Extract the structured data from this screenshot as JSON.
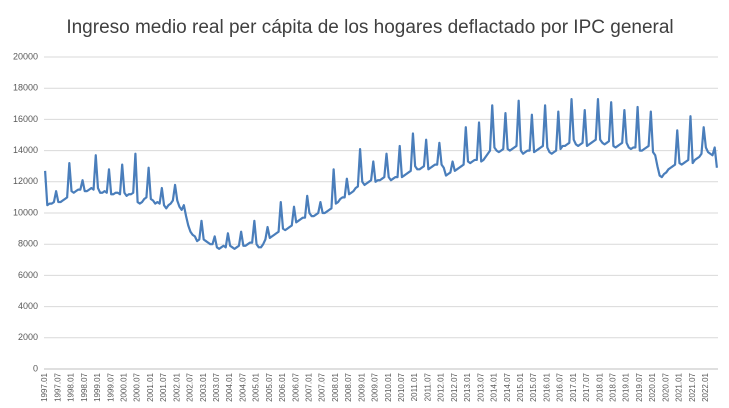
{
  "chart_data": {
    "type": "line",
    "title": "Ingreso medio real per cápita de los hogares deflactado por IPC general",
    "categories": [
      "1997.01",
      null,
      null,
      null,
      null,
      null,
      "1997.07",
      null,
      null,
      null,
      null,
      null,
      "1998.01",
      null,
      null,
      null,
      null,
      null,
      "1998.07",
      null,
      null,
      null,
      null,
      null,
      "1999.01",
      null,
      null,
      null,
      null,
      null,
      "1999.07",
      null,
      null,
      null,
      null,
      null,
      "2000.01",
      null,
      null,
      null,
      null,
      null,
      "2000.07",
      null,
      null,
      null,
      null,
      null,
      "2001.01",
      null,
      null,
      null,
      null,
      null,
      "2001.07",
      null,
      null,
      null,
      null,
      null,
      "2002.01",
      null,
      null,
      null,
      null,
      null,
      "2002.07",
      null,
      null,
      null,
      null,
      null,
      "2003.01",
      null,
      null,
      null,
      null,
      null,
      "2003.07",
      null,
      null,
      null,
      null,
      null,
      "2004.01",
      null,
      null,
      null,
      null,
      null,
      "2004.07",
      null,
      null,
      null,
      null,
      null,
      "2005.01",
      null,
      null,
      null,
      null,
      null,
      "2005.07",
      null,
      null,
      null,
      null,
      null,
      "2006.01",
      null,
      null,
      null,
      null,
      null,
      "2006.07",
      null,
      null,
      null,
      null,
      null,
      "2007.01",
      null,
      null,
      null,
      null,
      null,
      "2007.07",
      null,
      null,
      null,
      null,
      null,
      "2008.01",
      null,
      null,
      null,
      null,
      null,
      "2008.07",
      null,
      null,
      null,
      null,
      null,
      "2009.01",
      null,
      null,
      null,
      null,
      null,
      "2009.07",
      null,
      null,
      null,
      null,
      null,
      "2010.01",
      null,
      null,
      null,
      null,
      null,
      "2010.07",
      null,
      null,
      null,
      null,
      null,
      "2011.01",
      null,
      null,
      null,
      null,
      null,
      "2011.07",
      null,
      null,
      null,
      null,
      null,
      "2012.01",
      null,
      null,
      null,
      null,
      null,
      "2012.07",
      null,
      null,
      null,
      null,
      null,
      "2013.01",
      null,
      null,
      null,
      null,
      null,
      "2013.07",
      null,
      null,
      null,
      null,
      null,
      "2014.01",
      null,
      null,
      null,
      null,
      null,
      "2014.07",
      null,
      null,
      null,
      null,
      null,
      "2015.01",
      null,
      null,
      null,
      null,
      null,
      "2015.07",
      null,
      null,
      null,
      null,
      null,
      "2016.01",
      null,
      null,
      null,
      null,
      null,
      "2016.07",
      null,
      null,
      null,
      null,
      null,
      "2017.01",
      null,
      null,
      null,
      null,
      null,
      "2017.07",
      null,
      null,
      null,
      null,
      null,
      "2018.01",
      null,
      null,
      null,
      null,
      null,
      "2018.07",
      null,
      null,
      null,
      null,
      null,
      "2019.01",
      null,
      null,
      null,
      null,
      null,
      "2019.07",
      null,
      null,
      null,
      null,
      null,
      "2020.01",
      null,
      null,
      null,
      null,
      null,
      "2020.07",
      null,
      null,
      null,
      null,
      null,
      "2021.01",
      null,
      null,
      null,
      null,
      null,
      "2021.07",
      null,
      null,
      null,
      null,
      null,
      "2022.01",
      null,
      null,
      null,
      null,
      null
    ],
    "values": [
      12700,
      10500,
      10600,
      10600,
      10700,
      11400,
      10700,
      10700,
      10800,
      10900,
      11000,
      13200,
      11400,
      11300,
      11400,
      11500,
      11500,
      12100,
      11400,
      11400,
      11500,
      11600,
      11500,
      13700,
      11600,
      11300,
      11300,
      11400,
      11300,
      12800,
      11200,
      11200,
      11300,
      11300,
      11200,
      13100,
      11300,
      11100,
      11200,
      11200,
      11300,
      13800,
      10700,
      10600,
      10700,
      10900,
      11000,
      12900,
      10900,
      10800,
      10600,
      10700,
      10600,
      11600,
      10500,
      10300,
      10500,
      10600,
      10800,
      11800,
      10800,
      10400,
      10200,
      10500,
      9800,
      9200,
      8800,
      8600,
      8500,
      8200,
      8300,
      9500,
      8300,
      8200,
      8100,
      8000,
      8000,
      8500,
      7800,
      7700,
      7800,
      7900,
      7800,
      8700,
      7900,
      7800,
      7700,
      7800,
      7900,
      8800,
      7900,
      7900,
      8000,
      8100,
      8100,
      9500,
      8000,
      7800,
      7800,
      8000,
      8300,
      9100,
      8400,
      8500,
      8600,
      8700,
      8800,
      10700,
      9000,
      8900,
      9000,
      9100,
      9200,
      10400,
      9400,
      9500,
      9600,
      9700,
      9700,
      11100,
      10000,
      9800,
      9800,
      9900,
      10000,
      10700,
      10000,
      10000,
      10100,
      10200,
      10300,
      12800,
      10600,
      10700,
      10900,
      11000,
      11000,
      12200,
      11200,
      11300,
      11400,
      11600,
      11700,
      14100,
      12000,
      11800,
      11900,
      12000,
      12100,
      13300,
      12000,
      12100,
      12100,
      12200,
      12300,
      13800,
      12300,
      12100,
      12200,
      12300,
      12300,
      14300,
      12300,
      12400,
      12500,
      12600,
      12700,
      15100,
      13000,
      12800,
      12800,
      12900,
      13000,
      14700,
      12800,
      12900,
      13000,
      13100,
      13100,
      14500,
      13100,
      12900,
      12400,
      12500,
      12600,
      13300,
      12700,
      12800,
      12900,
      13000,
      13100,
      15500,
      13300,
      13200,
      13300,
      13400,
      13400,
      15800,
      13300,
      13400,
      13600,
      13800,
      14000,
      16900,
      14200,
      14000,
      13900,
      14000,
      14100,
      16400,
      14100,
      14000,
      14100,
      14200,
      14300,
      17200,
      14000,
      13800,
      13900,
      14000,
      14000,
      16300,
      13900,
      14000,
      14100,
      14200,
      14300,
      16900,
      14200,
      13900,
      13800,
      13900,
      14000,
      16500,
      14100,
      14300,
      14300,
      14400,
      14500,
      17300,
      14700,
      14400,
      14300,
      14400,
      14500,
      16600,
      14300,
      14400,
      14500,
      14600,
      14700,
      17300,
      14700,
      14500,
      14400,
      14500,
      14600,
      17100,
      14300,
      14200,
      14300,
      14400,
      14500,
      16600,
      14500,
      14200,
      14100,
      14200,
      14200,
      16800,
      14000,
      14000,
      14100,
      14200,
      14300,
      16500,
      13900,
      13700,
      13000,
      12400,
      12300,
      12500,
      12600,
      12800,
      12900,
      13000,
      13100,
      15300,
      13200,
      13100,
      13200,
      13300,
      13400,
      16200,
      13200,
      13400,
      13500,
      13600,
      13800,
      15500,
      14200,
      13900,
      13800,
      13700,
      14200,
      12900
    ],
    "color": "#4a7ebb",
    "ylim": [
      0,
      20000
    ],
    "yticks": [
      0,
      2000,
      4000,
      6000,
      8000,
      10000,
      12000,
      14000,
      16000,
      18000,
      20000
    ],
    "grid": true
  }
}
